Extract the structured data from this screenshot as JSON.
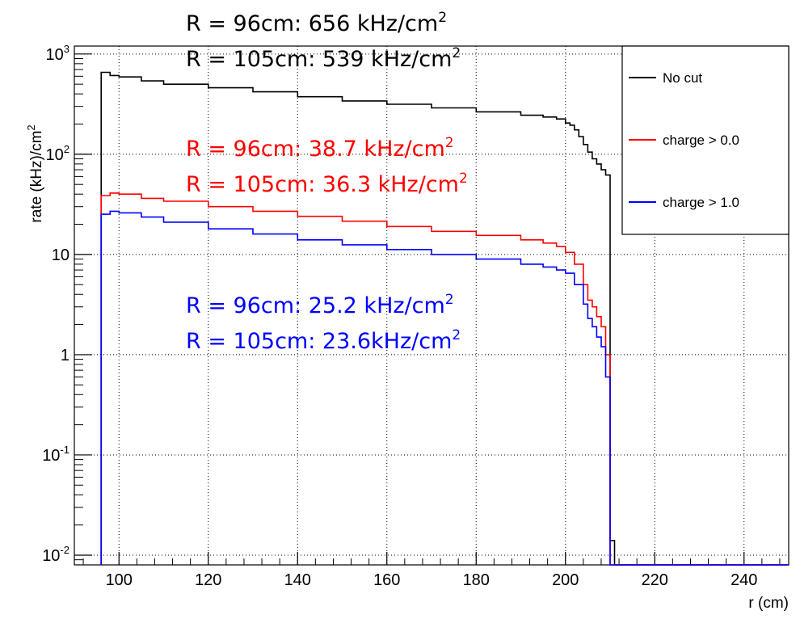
{
  "chart_data": {
    "type": "line",
    "xlabel": "r (cm)",
    "ylabel": "rate (kHz)/cm",
    "ylabel_sup": "2",
    "xlim": [
      90,
      250
    ],
    "ylim": [
      0.008,
      1200
    ],
    "y_scale": "log",
    "grid": true,
    "legend_position": "top-right",
    "x_ticks": [
      {
        "value": 100,
        "label": "100"
      },
      {
        "value": 120,
        "label": "120"
      },
      {
        "value": 140,
        "label": "140"
      },
      {
        "value": 160,
        "label": "160"
      },
      {
        "value": 180,
        "label": "180"
      },
      {
        "value": 200,
        "label": "200"
      },
      {
        "value": 220,
        "label": "220"
      },
      {
        "value": 240,
        "label": "240"
      }
    ],
    "y_ticks": [
      {
        "value": 0.01,
        "base": "10",
        "exp": "-2"
      },
      {
        "value": 0.1,
        "base": "10",
        "exp": "-1"
      },
      {
        "value": 1,
        "base": "1",
        "exp": ""
      },
      {
        "value": 10,
        "base": "10",
        "exp": ""
      },
      {
        "value": 100,
        "base": "10",
        "exp": "2"
      },
      {
        "value": 1000,
        "base": "10",
        "exp": "3"
      }
    ],
    "series": [
      {
        "name": "No cut",
        "color": "#000000",
        "x": [
          96,
          98,
          100,
          105,
          110,
          120,
          130,
          140,
          150,
          160,
          170,
          180,
          190,
          195,
          198,
          200,
          201,
          202,
          203,
          204,
          205,
          206,
          207,
          208,
          209,
          210,
          211
        ],
        "y": [
          656,
          610,
          590,
          539,
          500,
          460,
          420,
          375,
          340,
          315,
          290,
          265,
          245,
          235,
          225,
          205,
          195,
          175,
          150,
          125,
          105,
          90,
          80,
          70,
          62,
          0.014,
          0.008
        ]
      },
      {
        "name": "charge > 0.0",
        "color": "#ff0000",
        "x": [
          96,
          98,
          100,
          105,
          110,
          120,
          130,
          140,
          150,
          160,
          170,
          180,
          190,
          195,
          198,
          200,
          202,
          204,
          205,
          206,
          207,
          208,
          209,
          210
        ],
        "y": [
          38.7,
          41,
          40,
          36.3,
          34,
          30,
          27,
          24,
          21.5,
          19,
          17,
          15.5,
          14,
          13,
          12,
          10.5,
          8,
          5,
          3.5,
          3.0,
          2.4,
          1.9,
          1.0,
          0.008
        ]
      },
      {
        "name": "charge > 1.0",
        "color": "#0000ff",
        "x": [
          96,
          98,
          100,
          105,
          110,
          120,
          130,
          140,
          150,
          160,
          170,
          180,
          190,
          195,
          198,
          200,
          202,
          204,
          205,
          206,
          207,
          208,
          209,
          210
        ],
        "y": [
          25.2,
          27,
          26,
          23.6,
          21,
          18,
          16,
          14,
          12.5,
          11.2,
          10,
          9,
          8,
          7.5,
          7,
          6.5,
          5,
          3.2,
          2.3,
          1.9,
          1.5,
          1.2,
          0.6,
          0.008
        ]
      }
    ],
    "annotations": [
      {
        "text": "R = 96cm:   656 kHz/cm",
        "sup": "2",
        "color": "#000000"
      },
      {
        "text": "R = 105cm: 539 kHz/cm",
        "sup": "2",
        "color": "#000000"
      },
      {
        "text": "R = 96cm:   38.7 kHz/cm",
        "sup": "2",
        "color": "#ff0000"
      },
      {
        "text": "R = 105cm: 36.3 kHz/cm",
        "sup": "2",
        "color": "#ff0000"
      },
      {
        "text": "R = 96cm:   25.2 kHz/cm",
        "sup": "2",
        "color": "#0000ff"
      },
      {
        "text": "R = 105cm: 23.6kHz/cm",
        "sup": "2",
        "color": "#0000ff"
      }
    ]
  }
}
